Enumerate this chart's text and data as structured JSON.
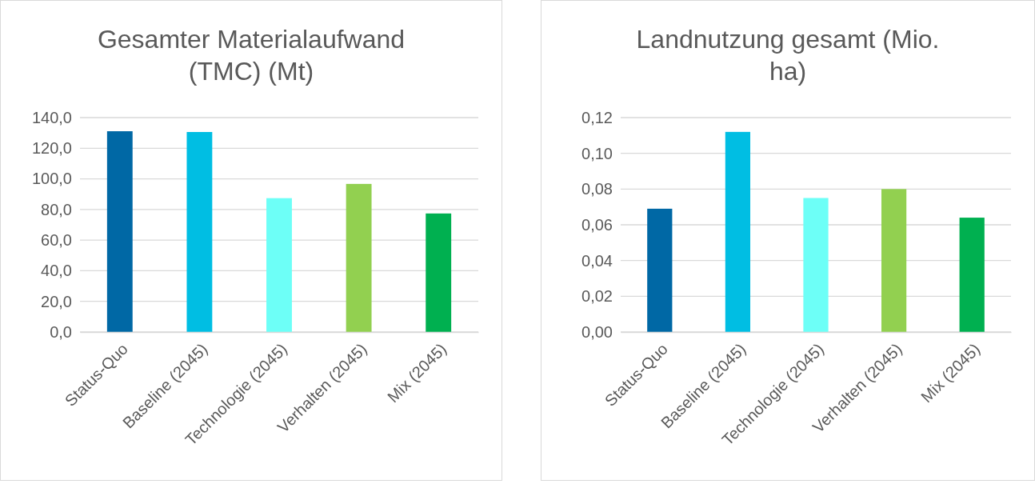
{
  "chart_data": [
    {
      "type": "bar",
      "title": "Gesamter Materialaufwand (TMC) (Mt)",
      "categories": [
        "Status-Quo",
        "Baseline (2045)",
        "Technologie (2045)",
        "Verhalten (2045)",
        "Mix (2045)"
      ],
      "values": [
        131.1,
        130.6,
        87.4,
        96.7,
        77.4
      ],
      "colors": [
        "#0068a5",
        "#00bee3",
        "#6dfff7",
        "#92d050",
        "#00b050"
      ],
      "ylim": [
        0,
        140
      ],
      "yticks": [
        {
          "value": 0,
          "label": "0,0"
        },
        {
          "value": 20,
          "label": "20,0"
        },
        {
          "value": 40,
          "label": "40,0"
        },
        {
          "value": 60,
          "label": "60,0"
        },
        {
          "value": 80,
          "label": "80,0"
        },
        {
          "value": 100,
          "label": "100,0"
        },
        {
          "value": 120,
          "label": "120,0"
        },
        {
          "value": 140,
          "label": "140,0"
        }
      ],
      "grid": "y"
    },
    {
      "type": "bar",
      "title": "Landnutzung gesamt (Mio. ha)",
      "categories": [
        "Status-Quo",
        "Baseline (2045)",
        "Technologie (2045)",
        "Verhalten (2045)",
        "Mix (2045)"
      ],
      "values": [
        0.069,
        0.112,
        0.075,
        0.08,
        0.064
      ],
      "colors": [
        "#0068a5",
        "#00bee3",
        "#6dfff7",
        "#92d050",
        "#00b050"
      ],
      "ylim": [
        0,
        0.12
      ],
      "yticks": [
        {
          "value": 0,
          "label": "0,00"
        },
        {
          "value": 0.02,
          "label": "0,02"
        },
        {
          "value": 0.04,
          "label": "0,04"
        },
        {
          "value": 0.06,
          "label": "0,06"
        },
        {
          "value": 0.08,
          "label": "0,08"
        },
        {
          "value": 0.1,
          "label": "0,10"
        },
        {
          "value": 0.12,
          "label": "0,12"
        }
      ],
      "grid": "y"
    }
  ]
}
